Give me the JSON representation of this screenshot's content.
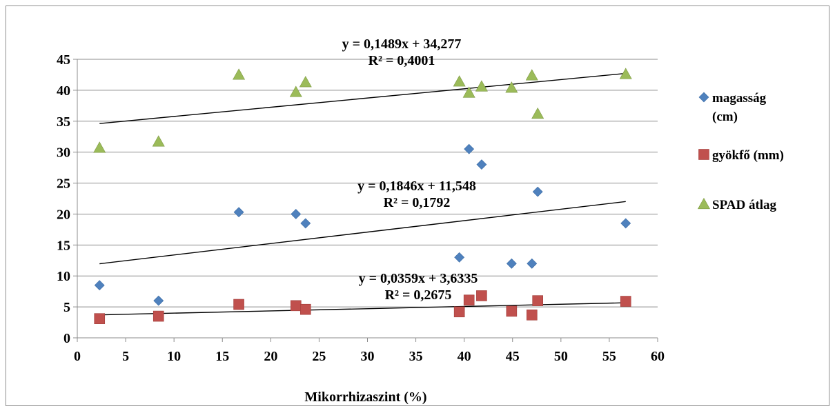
{
  "chart_data": {
    "type": "scatter",
    "xlabel": "Mikorrhizaszint (%)",
    "ylabel": "",
    "xlim": [
      0,
      60
    ],
    "ylim": [
      0,
      45
    ],
    "xticks": [
      0,
      5,
      10,
      15,
      20,
      25,
      30,
      35,
      40,
      45,
      50,
      55,
      60
    ],
    "yticks": [
      0,
      5,
      10,
      15,
      20,
      25,
      30,
      35,
      40,
      45
    ],
    "grid": "horizontal",
    "legend_position": "right",
    "series": [
      {
        "name_lines": [
          "magasság",
          "(cm)"
        ],
        "marker": "diamond",
        "color": "#4F81BD",
        "points": [
          [
            2.3,
            8.5
          ],
          [
            8.4,
            6
          ],
          [
            16.7,
            20.3
          ],
          [
            22.6,
            20
          ],
          [
            23.6,
            18.5
          ],
          [
            39.5,
            13
          ],
          [
            40.5,
            30.5
          ],
          [
            41.8,
            28
          ],
          [
            44.9,
            12
          ],
          [
            47.0,
            12
          ],
          [
            47.6,
            23.6
          ],
          [
            56.7,
            18.5
          ]
        ],
        "trend": {
          "slope": 0.1846,
          "intercept": 11.548,
          "equation": "y = 0,1846x + 11,548",
          "r2": "R² = 0,1792"
        }
      },
      {
        "name_lines": [
          "gyökfő (mm)"
        ],
        "marker": "square",
        "color": "#C0504D",
        "points": [
          [
            2.3,
            3.1
          ],
          [
            8.4,
            3.5
          ],
          [
            16.7,
            5.4
          ],
          [
            22.6,
            5.2
          ],
          [
            23.6,
            4.6
          ],
          [
            39.5,
            4.2
          ],
          [
            40.5,
            6.1
          ],
          [
            41.8,
            6.8
          ],
          [
            44.9,
            4.3
          ],
          [
            47.0,
            3.7
          ],
          [
            47.6,
            6.0
          ],
          [
            56.7,
            5.9
          ]
        ],
        "trend": {
          "slope": 0.0359,
          "intercept": 3.6335,
          "equation": "y = 0,0359x + 3,6335",
          "r2": "R² = 0,2675"
        }
      },
      {
        "name_lines": [
          "SPAD átlag"
        ],
        "marker": "triangle",
        "color": "#9BBB59",
        "points": [
          [
            2.3,
            30.7
          ],
          [
            8.4,
            31.7
          ],
          [
            16.7,
            42.5
          ],
          [
            22.6,
            39.7
          ],
          [
            23.6,
            41.3
          ],
          [
            39.5,
            41.4
          ],
          [
            40.5,
            39.6
          ],
          [
            41.8,
            40.6
          ],
          [
            44.9,
            40.4
          ],
          [
            47.0,
            42.4
          ],
          [
            47.6,
            36.2
          ],
          [
            56.7,
            42.6
          ]
        ],
        "trend": {
          "slope": 0.1489,
          "intercept": 34.277,
          "equation": "y = 0,1489x + 34,277",
          "r2": "R² = 0,4001"
        }
      }
    ]
  }
}
